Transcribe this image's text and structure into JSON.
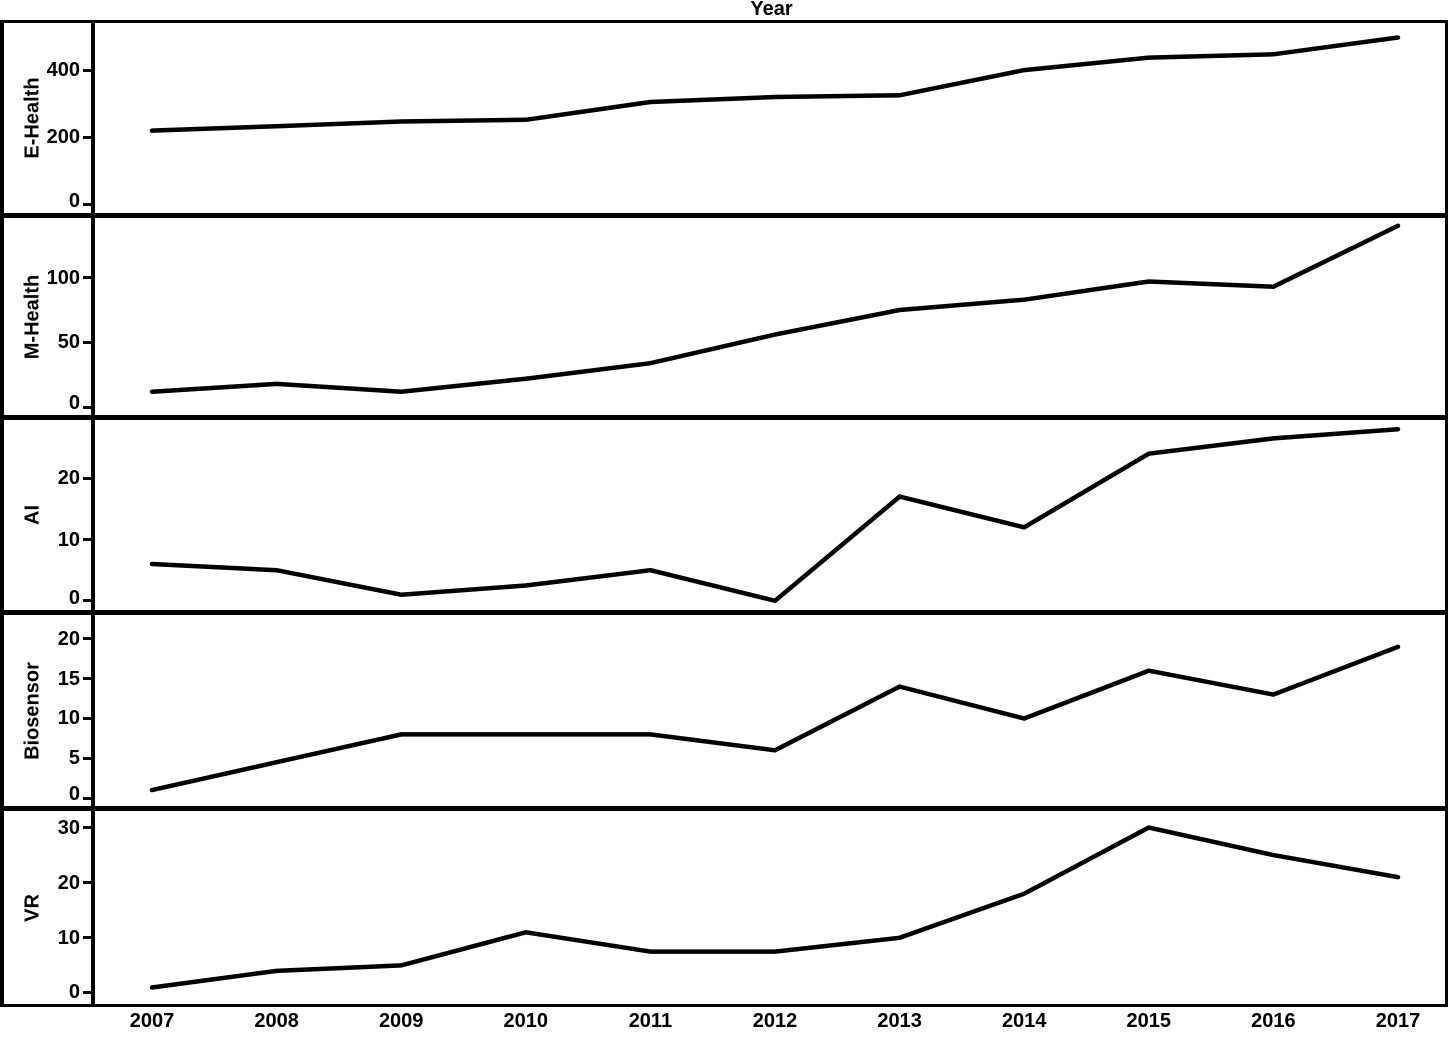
{
  "title": "Year",
  "colors": {
    "line": "#000000",
    "frame": "#000000",
    "background": "#ffffff",
    "text": "#000000"
  },
  "x_axis": {
    "years": [
      "2007",
      "2008",
      "2009",
      "2010",
      "2011",
      "2012",
      "2013",
      "2014",
      "2015",
      "2016",
      "2017"
    ]
  },
  "chart_data": [
    {
      "type": "line",
      "panel_label": "E-Health",
      "x": [
        2007,
        2008,
        2009,
        2010,
        2011,
        2012,
        2013,
        2014,
        2015,
        2016,
        2017
      ],
      "values": [
        220,
        233,
        247,
        252,
        305,
        320,
        325,
        400,
        437,
        447,
        497
      ],
      "yticks": [
        0,
        200,
        400
      ],
      "ylim": [
        -25,
        540
      ],
      "grid": false,
      "legend": "none"
    },
    {
      "type": "line",
      "panel_label": "M-Health",
      "x": [
        2007,
        2008,
        2009,
        2010,
        2011,
        2012,
        2013,
        2014,
        2015,
        2016,
        2017
      ],
      "values": [
        12,
        18,
        12,
        22,
        34,
        56,
        75,
        83,
        97,
        93,
        140
      ],
      "yticks": [
        0,
        50,
        100
      ],
      "ylim": [
        -6,
        146
      ],
      "grid": false,
      "legend": "none"
    },
    {
      "type": "line",
      "panel_label": "AI",
      "x": [
        2007,
        2008,
        2009,
        2010,
        2011,
        2012,
        2013,
        2014,
        2015,
        2016,
        2017
      ],
      "values": [
        6,
        5,
        1,
        2.5,
        5,
        0,
        17,
        12,
        24,
        26.5,
        28
      ],
      "yticks": [
        0,
        10,
        20
      ],
      "ylim": [
        -1.5,
        29.5
      ],
      "grid": false,
      "legend": "none"
    },
    {
      "type": "line",
      "panel_label": "Biosensor",
      "x": [
        2007,
        2008,
        2009,
        2010,
        2011,
        2012,
        2013,
        2014,
        2015,
        2016,
        2017
      ],
      "values": [
        1,
        4.5,
        8,
        8,
        8,
        6,
        14,
        10,
        16,
        13,
        19
      ],
      "yticks": [
        0,
        5,
        10,
        15,
        20
      ],
      "ylim": [
        -1,
        23
      ],
      "grid": false,
      "legend": "none"
    },
    {
      "type": "line",
      "panel_label": "VR",
      "x": [
        2007,
        2008,
        2009,
        2010,
        2011,
        2012,
        2013,
        2014,
        2015,
        2016,
        2017
      ],
      "values": [
        1,
        4,
        5,
        11,
        7.5,
        7.5,
        10,
        18,
        30,
        25,
        21
      ],
      "yticks": [
        0,
        10,
        20,
        30
      ],
      "ylim": [
        -2,
        33
      ],
      "grid": false,
      "legend": "none"
    }
  ]
}
